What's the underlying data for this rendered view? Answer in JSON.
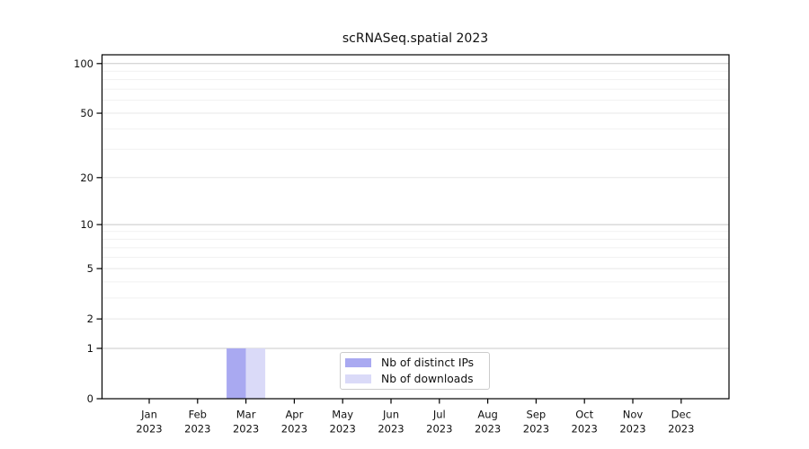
{
  "chart_data": {
    "type": "bar",
    "title": "scRNASeq.spatial 2023",
    "categories": [
      "Jan",
      "Feb",
      "Mar",
      "Apr",
      "May",
      "Jun",
      "Jul",
      "Aug",
      "Sep",
      "Oct",
      "Nov",
      "Dec"
    ],
    "category_year": "2023",
    "series": [
      {
        "name": "Nb of distinct IPs",
        "color": "#a9a9f1",
        "values": [
          0,
          0,
          1,
          0,
          0,
          0,
          0,
          0,
          0,
          0,
          0,
          0
        ]
      },
      {
        "name": "Nb of downloads",
        "color": "#dadaf8",
        "values": [
          0,
          0,
          1,
          0,
          0,
          0,
          0,
          0,
          0,
          0,
          0,
          0
        ]
      }
    ],
    "xlabel": "",
    "ylabel": "",
    "y_scale": "log1p",
    "y_ticks": [
      0,
      1,
      2,
      5,
      10,
      20,
      50,
      100
    ],
    "y_minor_gridlines": [
      3,
      4,
      6,
      7,
      8,
      9,
      30,
      40,
      60,
      70,
      80,
      90
    ],
    "ylim": [
      0,
      112
    ],
    "grid": "horizontal",
    "legend_position": "lower center",
    "colors": {
      "spine": "#000000",
      "text": "#111111",
      "grid_decade": "#c8c8c8",
      "grid_major": "#e7e7e7",
      "grid_minor": "#f1f1f1",
      "background": "#ffffff"
    }
  }
}
